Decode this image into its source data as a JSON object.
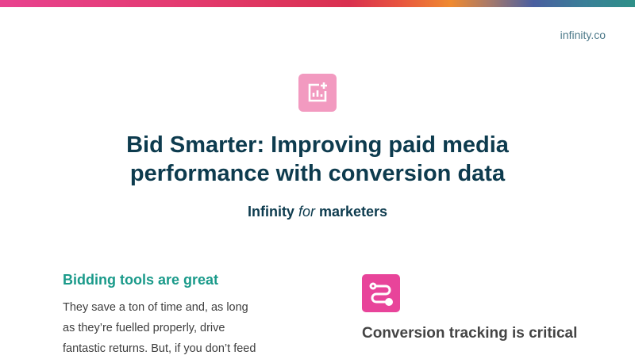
{
  "colors": {
    "accent_pink": "#e8449a",
    "light_pink": "#f29ac0",
    "navy": "#0d3b4e",
    "teal": "#1a9a8a"
  },
  "brand": "infinity.co",
  "hero": {
    "icon": "chart-add-icon",
    "title_line1": "Bid Smarter: Improving paid media",
    "title_line2": "performance with conversion data",
    "subtitle_pre": "Infinity ",
    "subtitle_em": "for",
    "subtitle_post": " marketers"
  },
  "left": {
    "heading": "Bidding tools are great",
    "lines": [
      "They save a ton of time and, as long",
      "as they’re fuelled properly, drive",
      "fantastic returns. But, if you don’t feed"
    ]
  },
  "right": {
    "icon": "route-icon",
    "heading": "Conversion tracking is critical"
  }
}
